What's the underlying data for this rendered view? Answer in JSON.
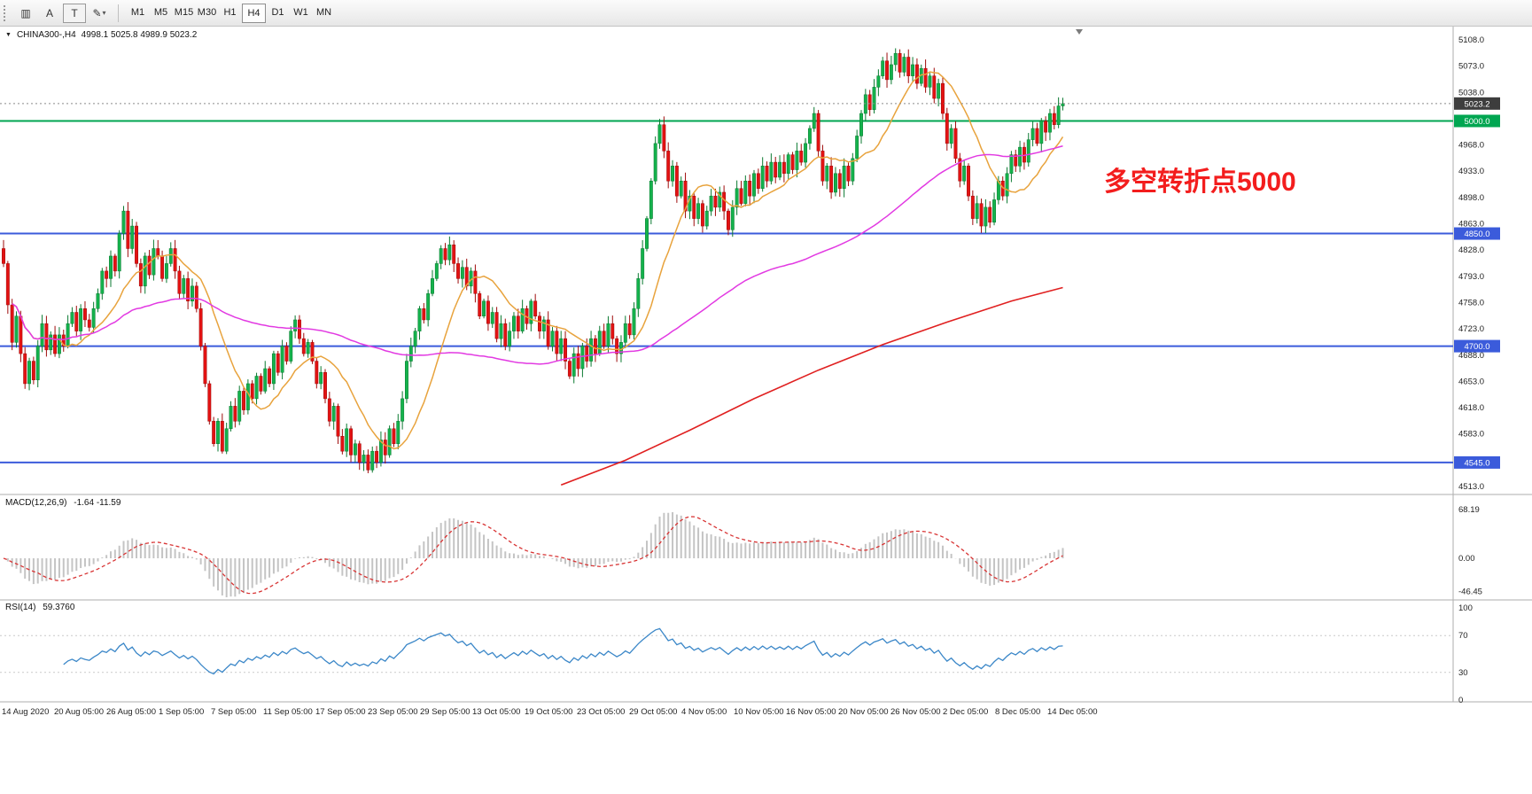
{
  "toolbar": {
    "tools": [
      {
        "name": "chart-window-icon",
        "glyph": "▥",
        "boxed": false,
        "dropdown": false
      },
      {
        "name": "text-label-tool",
        "glyph": "A",
        "boxed": false,
        "dropdown": false
      },
      {
        "name": "text-tool",
        "glyph": "T",
        "boxed": true,
        "dropdown": false
      },
      {
        "name": "draw-tool",
        "glyph": "✎",
        "boxed": false,
        "dropdown": true
      }
    ],
    "timeframes": [
      "M1",
      "M5",
      "M15",
      "M30",
      "H1",
      "H4",
      "D1",
      "W1",
      "MN"
    ],
    "active_timeframe": "H4"
  },
  "chart_data": {
    "type": "candlestick",
    "symbol_title": "CHINA300-,H4",
    "ohlc_text": "4998.1 5025.8 4989.9 5023.2",
    "annotation": "多空转折点5000",
    "annotation_color": "#f31d1d",
    "price_axis": {
      "min": 4513.0,
      "max": 5108.0,
      "ticks": [
        5108,
        5073,
        5038,
        4968,
        4933,
        4898,
        4863,
        4828,
        4793,
        4758,
        4723,
        4688,
        4653,
        4618,
        4583,
        4513
      ]
    },
    "time_labels": [
      "14 Aug 2020",
      "20 Aug 05:00",
      "26 Aug 05:00",
      "1 Sep 05:00",
      "7 Sep 05:00",
      "11 Sep 05:00",
      "17 Sep 05:00",
      "23 Sep 05:00",
      "29 Sep 05:00",
      "13 Oct 05:00",
      "19 Oct 05:00",
      "23 Oct 05:00",
      "29 Oct 05:00",
      "4 Nov 05:00",
      "10 Nov 05:00",
      "16 Nov 05:00",
      "20 Nov 05:00",
      "26 Nov 05:00",
      "2 Dec 05:00",
      "8 Dec 05:00",
      "14 Dec 05:00"
    ],
    "candles": {
      "first_open": 4830,
      "up_fill": "#14b24c",
      "up_border": "#0b7a31",
      "down_fill": "#e31212",
      "down_border": "#9e0b0b",
      "closes": [
        4810,
        4755,
        4705,
        4740,
        4690,
        4650,
        4680,
        4655,
        4700,
        4730,
        4695,
        4715,
        4690,
        4715,
        4700,
        4730,
        4745,
        4720,
        4750,
        4735,
        4725,
        4750,
        4770,
        4800,
        4790,
        4820,
        4800,
        4850,
        4880,
        4830,
        4860,
        4810,
        4780,
        4820,
        4795,
        4830,
        4820,
        4790,
        4810,
        4830,
        4800,
        4770,
        4790,
        4760,
        4780,
        4750,
        4700,
        4650,
        4600,
        4570,
        4600,
        4560,
        4590,
        4620,
        4600,
        4640,
        4615,
        4650,
        4630,
        4660,
        4640,
        4670,
        4650,
        4690,
        4665,
        4700,
        4680,
        4720,
        4735,
        4710,
        4690,
        4705,
        4680,
        4650,
        4665,
        4630,
        4600,
        4620,
        4580,
        4560,
        4590,
        4555,
        4570,
        4545,
        4555,
        4535,
        4560,
        4545,
        4575,
        4555,
        4590,
        4570,
        4600,
        4630,
        4680,
        4700,
        4720,
        4750,
        4735,
        4770,
        4790,
        4810,
        4830,
        4815,
        4835,
        4810,
        4790,
        4805,
        4780,
        4800,
        4770,
        4740,
        4760,
        4730,
        4745,
        4710,
        4730,
        4700,
        4720,
        4740,
        4720,
        4750,
        4730,
        4760,
        4740,
        4720,
        4735,
        4700,
        4720,
        4690,
        4710,
        4680,
        4660,
        4690,
        4670,
        4700,
        4680,
        4710,
        4690,
        4720,
        4700,
        4730,
        4710,
        4690,
        4705,
        4730,
        4715,
        4750,
        4790,
        4830,
        4870,
        4920,
        4970,
        4995,
        4960,
        4920,
        4940,
        4900,
        4920,
        4880,
        4900,
        4870,
        4890,
        4860,
        4880,
        4900,
        4885,
        4905,
        4880,
        4855,
        4885,
        4910,
        4890,
        4920,
        4900,
        4930,
        4910,
        4940,
        4920,
        4945,
        4925,
        4945,
        4930,
        4955,
        4935,
        4960,
        4945,
        4970,
        4990,
        5010,
        4960,
        4920,
        4940,
        4905,
        4930,
        4910,
        4940,
        4920,
        4950,
        4980,
        5010,
        5035,
        5015,
        5045,
        5060,
        5080,
        5055,
        5075,
        5090,
        5065,
        5085,
        5060,
        5075,
        5050,
        5070,
        5045,
        5060,
        5030,
        5050,
        5010,
        4970,
        4990,
        4950,
        4920,
        4940,
        4900,
        4870,
        4890,
        4860,
        4885,
        4865,
        4895,
        4920,
        4900,
        4930,
        4955,
        4940,
        4965,
        4945,
        4975,
        4990,
        4970,
        5000,
        4985,
        5010,
        4995,
        5020,
        5023
      ]
    },
    "hlines": [
      {
        "price": 5000.0,
        "label": "5000.0",
        "color": "#00a651"
      },
      {
        "price": 4850.0,
        "label": "4850.0",
        "color": "#3b5bdb"
      },
      {
        "price": 4700.0,
        "label": "4700.0",
        "color": "#3b5bdb"
      },
      {
        "price": 4545.0,
        "label": "4545.0",
        "color": "#3b5bdb"
      }
    ],
    "current_price_marker": {
      "price": 5023.2,
      "label": "5023.2",
      "bg": "#3d3d3d"
    },
    "moving_averages": {
      "fast": {
        "period": 14,
        "color": "#e8a33d"
      },
      "medium": {
        "period": 80,
        "color": "#e23ae2"
      },
      "long": {
        "color": "#e02020",
        "anchors": [
          [
            130,
            4515
          ],
          [
            145,
            4548
          ],
          [
            160,
            4588
          ],
          [
            175,
            4630
          ],
          [
            190,
            4668
          ],
          [
            205,
            4702
          ],
          [
            220,
            4732
          ],
          [
            235,
            4760
          ],
          [
            247,
            4778
          ]
        ]
      }
    },
    "macd": {
      "label": "MACD(12,26,9)",
      "values": "-1.64 -11.59",
      "scale_labels": [
        "68.19",
        "0.00",
        "-46.45"
      ],
      "hist_color": "#c4c4c4",
      "signal_color": "#d83434"
    },
    "rsi": {
      "label": "RSI(14)",
      "value": "59.3760",
      "scale_labels": [
        "100",
        "70",
        "30",
        "0"
      ],
      "levels": [
        70,
        30
      ],
      "color": "#3b87c8"
    }
  }
}
